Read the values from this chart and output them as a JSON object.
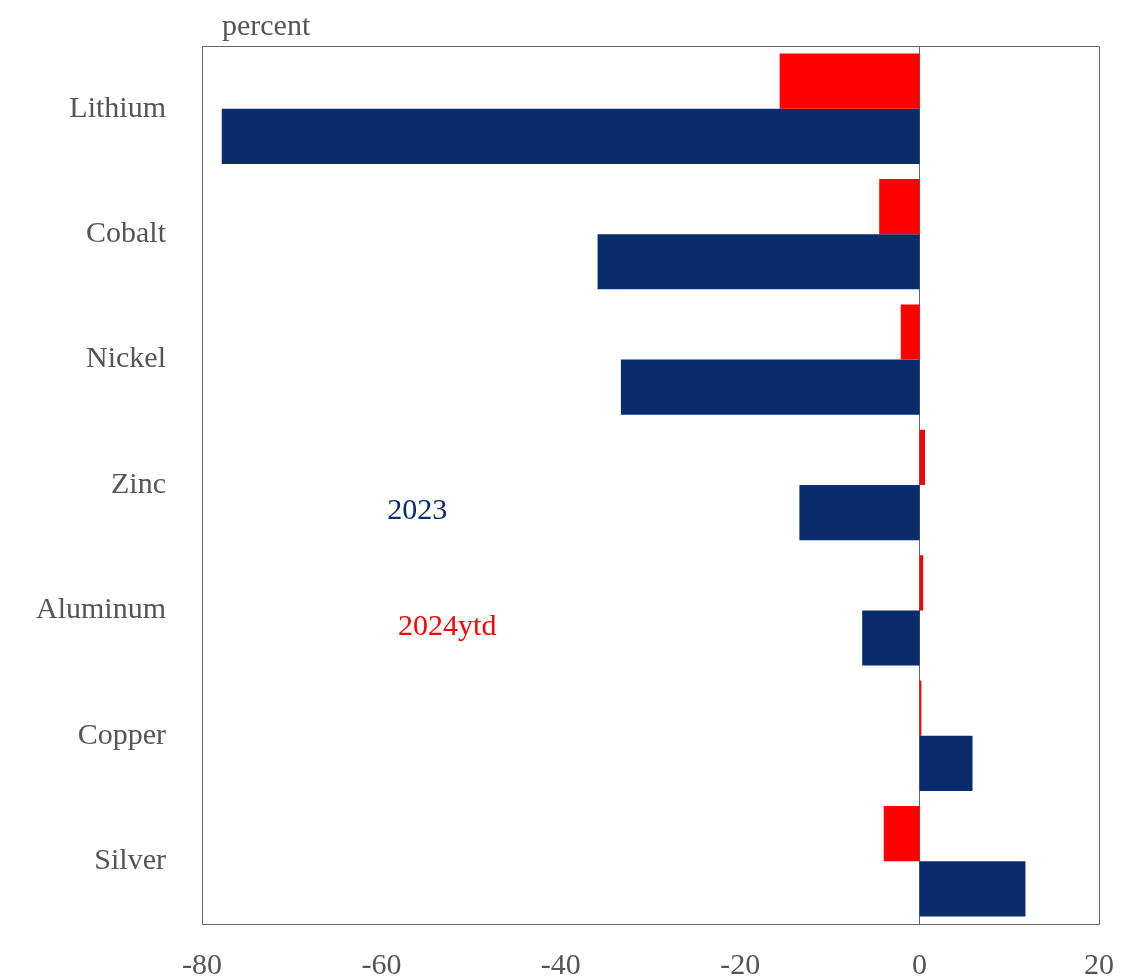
{
  "chart_data": {
    "type": "bar",
    "orientation": "horizontal",
    "xlabel": "percent",
    "categories": [
      "Lithium",
      "Cobalt",
      "Nickel",
      "Zinc",
      "Aluminum",
      "Copper",
      "Silver"
    ],
    "series": [
      {
        "name": "2024ytd",
        "color": "#ff0000",
        "values": [
          -15.6,
          -4.5,
          -2.1,
          0.6,
          0.4,
          0.2,
          -4.0
        ]
      },
      {
        "name": "2023",
        "color": "#082c6c",
        "values": [
          -77.8,
          -35.9,
          -33.3,
          -13.4,
          -6.4,
          5.9,
          11.8
        ]
      }
    ],
    "xlim": [
      -80,
      20
    ],
    "xticks": [
      -80,
      -60,
      -40,
      -20,
      0,
      20
    ],
    "legend": "left"
  }
}
